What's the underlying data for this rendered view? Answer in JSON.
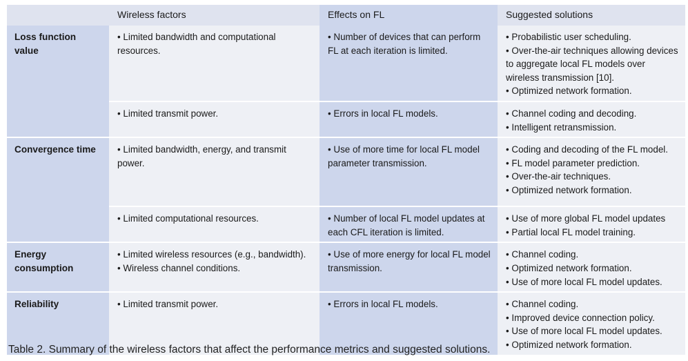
{
  "table": {
    "headers": [
      "",
      "Wireless factors",
      "Effects on FL",
      "Suggested solutions"
    ],
    "groups": [
      {
        "metric": "Loss function value",
        "rows": [
          {
            "wireless": [
              "• Limited bandwidth and computational resources."
            ],
            "effects": [
              "• Number of devices that can perform FL at each iteration is limited."
            ],
            "solutions": [
              "• Probabilistic user scheduling.",
              "• Over-the-air techniques allowing devices to aggregate local FL models over wireless transmission [10].",
              "• Optimized network formation."
            ]
          },
          {
            "wireless": [
              "• Limited transmit power."
            ],
            "effects": [
              "• Errors in local FL models."
            ],
            "solutions": [
              "• Channel coding and decoding.",
              "• Intelligent retransmission."
            ]
          }
        ]
      },
      {
        "metric": "Convergence time",
        "rows": [
          {
            "wireless": [
              "• Limited bandwidth, energy, and transmit power."
            ],
            "effects": [
              "• Use of more time for local FL model parameter transmission."
            ],
            "solutions": [
              "• Coding and decoding of the FL model.",
              "• FL model parameter prediction.",
              "• Over-the-air techniques.",
              "• Optimized network formation."
            ]
          },
          {
            "wireless": [
              "• Limited computational resources."
            ],
            "effects": [
              "• Number of local FL model updates at each CFL iteration is limited."
            ],
            "solutions": [
              "• Use of more global FL model updates",
              "• Partial local FL model training."
            ]
          }
        ]
      },
      {
        "metric": "Energy consumption",
        "rows": [
          {
            "wireless": [
              "• Limited wireless resources (e.g., bandwidth).",
              "• Wireless channel conditions."
            ],
            "effects": [
              "• Use of more energy for local FL model transmission."
            ],
            "solutions": [
              "• Channel coding.",
              "• Optimized network formation.",
              "• Use of more local FL model updates."
            ]
          }
        ]
      },
      {
        "metric": "Reliability",
        "rows": [
          {
            "wireless": [
              "• Limited transmit power."
            ],
            "effects": [
              "• Errors in local FL models."
            ],
            "solutions": [
              "• Channel coding.",
              "• Improved device connection policy.",
              "• Use of more local FL model updates.",
              "• Optimized network formation."
            ]
          }
        ]
      }
    ]
  },
  "caption": {
    "label": "Table 2.",
    "text": " Summary of the wireless factors that affect the performance metrics and suggested solutions."
  }
}
